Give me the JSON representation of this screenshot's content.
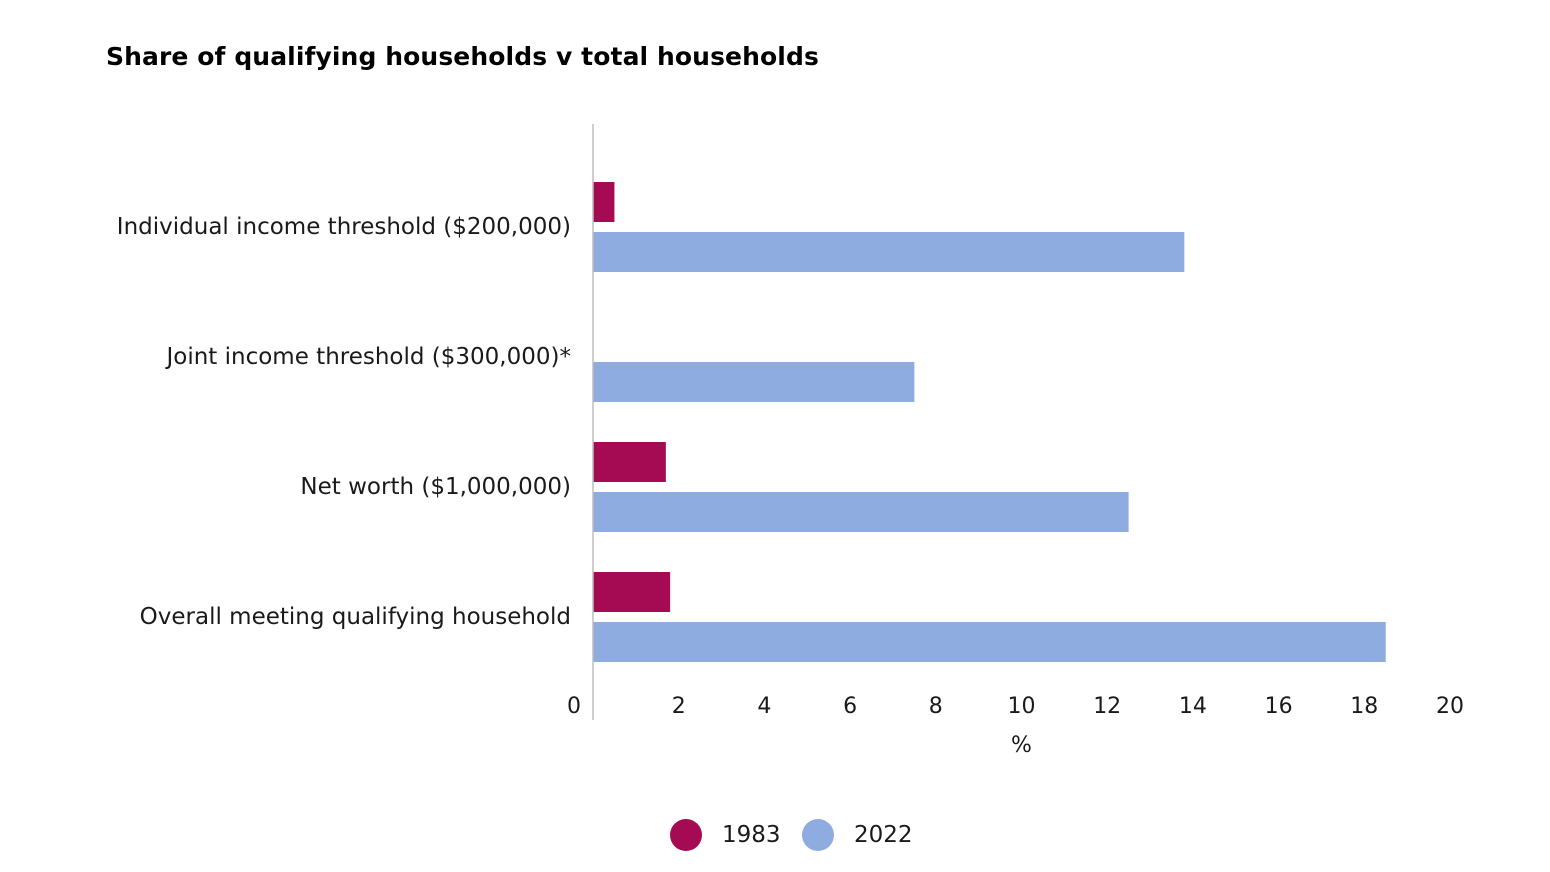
{
  "chart_data": {
    "type": "bar",
    "orientation": "horizontal",
    "title": "Share of qualifying households v total households",
    "xlabel": "%",
    "ylabel": "",
    "xlim": [
      0,
      20
    ],
    "x_ticks": [
      "0",
      "2",
      "4",
      "6",
      "8",
      "10",
      "12",
      "14",
      "16",
      "18",
      "20"
    ],
    "categories": [
      "Individual income threshold ($200,000)",
      "Joint income threshold ($300,000)*",
      "Net worth ($1,000,000)",
      "Overall meeting qualifying household"
    ],
    "series": [
      {
        "name": "1983",
        "color": "#A50B52",
        "values": [
          0.5,
          null,
          1.7,
          1.8
        ]
      },
      {
        "name": "2022",
        "color": "#8EACE0",
        "values": [
          13.8,
          7.5,
          12.5,
          18.5
        ]
      }
    ],
    "grid": false,
    "legend_position": "bottom-center"
  }
}
